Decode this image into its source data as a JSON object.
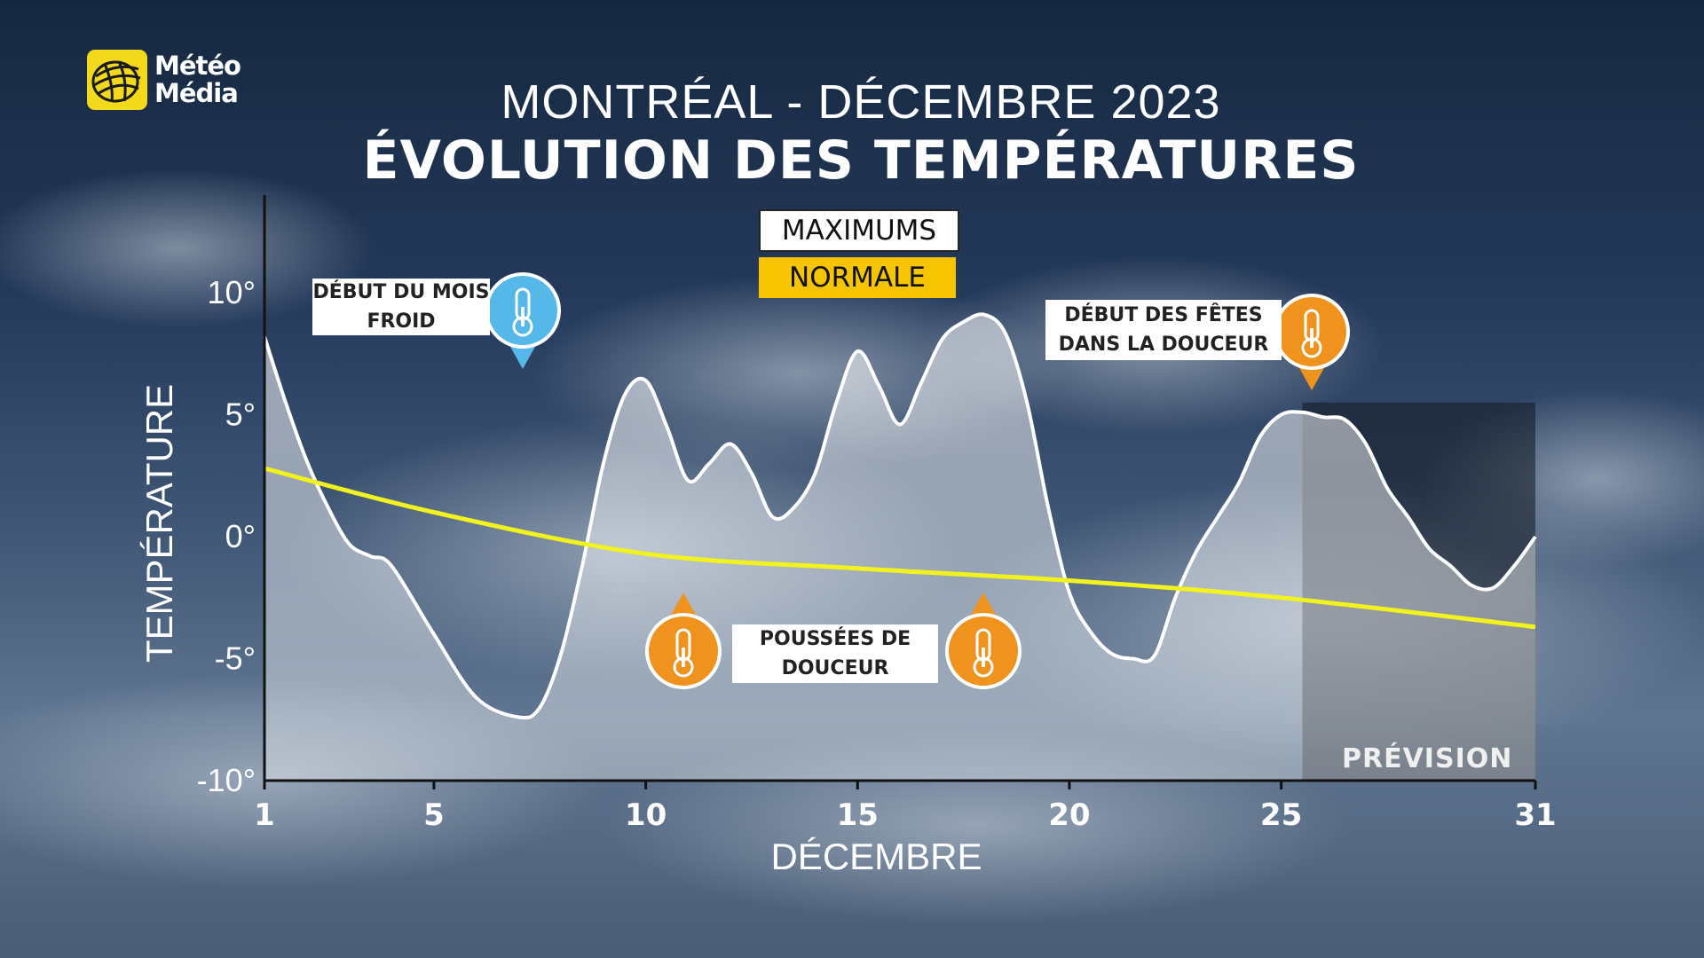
{
  "brand": {
    "line1": "Météo",
    "line2": "Média"
  },
  "title": "MONTRÉAL - DÉCEMBRE 2023",
  "subtitle": "ÉVOLUTION DES TEMPÉRATURES",
  "legend": {
    "maximums": "MAXIMUMS",
    "normale": "NORMALE"
  },
  "annotations": {
    "cold_start": "DÉBUT DU MOIS FROID",
    "mild_pushes": "POUSSÉES DE DOUCEUR",
    "mild_holidays": "DÉBUT DES FÊTES DANS LA DOUCEUR"
  },
  "forecast_label": "PRÉVISION",
  "colors": {
    "normale": "#f2f21e",
    "maximums": "#ffffff",
    "logo": "#f3d91c",
    "cold_icon": "#56b8e8",
    "warm_icon": "#f0921e"
  },
  "chart_data": {
    "type": "line",
    "title": "ÉVOLUTION DES TEMPÉRATURES",
    "xlabel": "DÉCEMBRE",
    "ylabel": "TEMPÉRATURE",
    "xlim": [
      1,
      31
    ],
    "ylim": [
      -10,
      10
    ],
    "x_ticks": [
      1,
      5,
      10,
      15,
      20,
      25,
      31
    ],
    "y_ticks": [
      -10,
      -5,
      0,
      5,
      10
    ],
    "y_tick_labels": [
      "-10°",
      "-5°",
      "0°",
      "5°",
      "10°"
    ],
    "grid": false,
    "forecast_start": 25.5,
    "series": [
      {
        "name": "MAXIMUMS",
        "x": [
          1,
          1.5,
          2,
          2.5,
          3,
          3.5,
          4,
          5,
          6,
          7,
          7.5,
          8,
          8.5,
          9,
          9.5,
          10,
          10.5,
          11,
          11.5,
          12,
          12.5,
          13,
          13.5,
          14,
          14.5,
          15,
          15.5,
          16,
          16.5,
          17,
          17.5,
          18,
          18.5,
          19,
          19.5,
          20,
          20.5,
          21,
          21.5,
          22,
          22.5,
          23,
          23.5,
          24,
          24.5,
          25,
          25.5,
          26,
          26.5,
          27,
          27.5,
          28,
          28.5,
          29,
          29.5,
          30,
          30.5,
          31
        ],
        "y": [
          8.2,
          5.5,
          3.1,
          1.2,
          -0.3,
          -0.8,
          -1.2,
          -4,
          -6.6,
          -7.4,
          -7,
          -4.8,
          -1.2,
          3,
          5.8,
          6.4,
          4.5,
          2.3,
          3,
          3.8,
          2.6,
          0.8,
          1.2,
          2.6,
          5.5,
          7.6,
          6.2,
          4.6,
          6.3,
          8.1,
          8.8,
          9.1,
          8.3,
          5.5,
          1.2,
          -2.3,
          -3.9,
          -4.8,
          -5,
          -4.9,
          -2.5,
          -0.6,
          0.8,
          2.2,
          4.1,
          5,
          5.1,
          4.9,
          4.8,
          3.8,
          2,
          0.8,
          -0.5,
          -1.2,
          -2,
          -2.1,
          -1.2,
          0
        ]
      },
      {
        "name": "NORMALE",
        "x": [
          1,
          5,
          10,
          15,
          20,
          25,
          31
        ],
        "y": [
          2.8,
          1,
          -0.7,
          -1.3,
          -1.8,
          -2.5,
          -3.7
        ]
      }
    ]
  }
}
